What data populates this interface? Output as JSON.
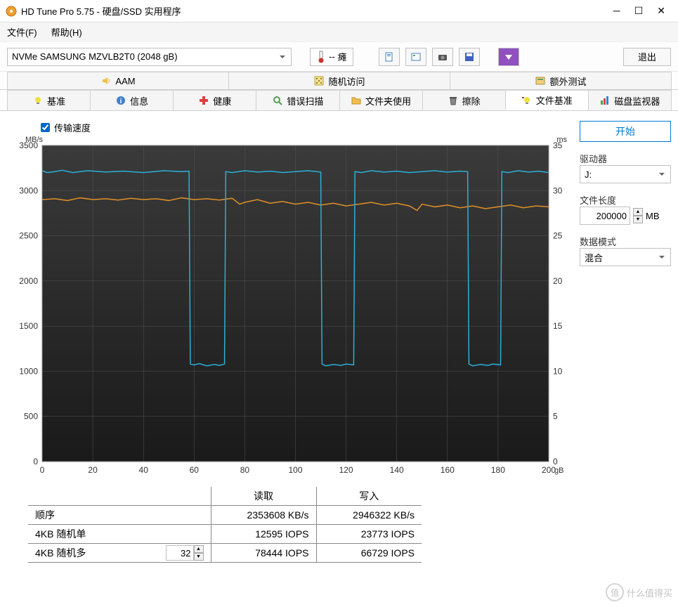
{
  "window": {
    "title": "HD Tune Pro 5.75 - 硬盘/SSD 实用程序"
  },
  "menubar": {
    "file": "文件(F)",
    "help": "帮助(H)"
  },
  "toolbar": {
    "drive": "NVMe   SAMSUNG MZVLB2T0 (2048 gB)",
    "temp_value": "--",
    "temp_unit": "瘫",
    "exit": "退出"
  },
  "tabs_row1": {
    "aam": "AAM",
    "random": "随机访问",
    "extra": "额外测试"
  },
  "tabs_row2": {
    "benchmark": "基准",
    "info": "信息",
    "health": "健康",
    "error_scan": "错误扫描",
    "folder_usage": "文件夹使用",
    "erase": "擦除",
    "file_bench": "文件基准",
    "disk_monitor": "磁盘监视器"
  },
  "checkbox": {
    "transfer_speed": "传输速度"
  },
  "chart": {
    "y_left_unit": "MB/s",
    "y_right_unit": "ms",
    "x_unit": "gB",
    "y_left_ticks": [
      0,
      500,
      1000,
      1500,
      2000,
      2500,
      3000,
      3500
    ],
    "y_right_ticks": [
      0,
      5,
      10,
      15,
      20,
      25,
      30,
      35
    ],
    "x_ticks": [
      0,
      20,
      40,
      60,
      80,
      100,
      120,
      140,
      160,
      180,
      200
    ],
    "ylim_left": [
      0,
      3500
    ],
    "ylim_right": [
      0,
      35
    ],
    "xlim": [
      0,
      200
    ],
    "background_color": "#2d2d2d",
    "grid_color": "#555555",
    "speed_color": "#2bb0d8",
    "access_color": "#e09028",
    "speed_series": [
      [
        0,
        3220
      ],
      [
        2,
        3200
      ],
      [
        5,
        3210
      ],
      [
        8,
        3225
      ],
      [
        12,
        3200
      ],
      [
        18,
        3220
      ],
      [
        25,
        3205
      ],
      [
        32,
        3215
      ],
      [
        40,
        3200
      ],
      [
        48,
        3220
      ],
      [
        55,
        3210
      ],
      [
        58,
        3215
      ],
      [
        58.5,
        1080
      ],
      [
        60,
        1070
      ],
      [
        62,
        1085
      ],
      [
        65,
        1060
      ],
      [
        68,
        1075
      ],
      [
        70,
        1065
      ],
      [
        72,
        1080
      ],
      [
        72.5,
        3210
      ],
      [
        75,
        3200
      ],
      [
        80,
        3220
      ],
      [
        85,
        3205
      ],
      [
        90,
        3215
      ],
      [
        95,
        3200
      ],
      [
        100,
        3210
      ],
      [
        105,
        3220
      ],
      [
        110,
        3205
      ],
      [
        110.5,
        1080
      ],
      [
        112,
        1060
      ],
      [
        115,
        1075
      ],
      [
        118,
        1065
      ],
      [
        120,
        1080
      ],
      [
        123,
        1070
      ],
      [
        123.5,
        3210
      ],
      [
        126,
        3200
      ],
      [
        130,
        3220
      ],
      [
        135,
        3205
      ],
      [
        140,
        3215
      ],
      [
        145,
        3200
      ],
      [
        150,
        3210
      ],
      [
        155,
        3220
      ],
      [
        160,
        3205
      ],
      [
        165,
        3215
      ],
      [
        168,
        3210
      ],
      [
        168.5,
        1080
      ],
      [
        170,
        1060
      ],
      [
        173,
        1075
      ],
      [
        176,
        1065
      ],
      [
        178,
        1080
      ],
      [
        181,
        1070
      ],
      [
        181.5,
        3210
      ],
      [
        184,
        3200
      ],
      [
        188,
        3220
      ],
      [
        192,
        3205
      ],
      [
        196,
        3215
      ],
      [
        200,
        3200
      ]
    ],
    "access_series": [
      [
        0,
        2900
      ],
      [
        5,
        2910
      ],
      [
        10,
        2890
      ],
      [
        15,
        2920
      ],
      [
        20,
        2900
      ],
      [
        25,
        2910
      ],
      [
        30,
        2895
      ],
      [
        35,
        2915
      ],
      [
        40,
        2900
      ],
      [
        45,
        2910
      ],
      [
        50,
        2890
      ],
      [
        55,
        2920
      ],
      [
        60,
        2900
      ],
      [
        65,
        2910
      ],
      [
        70,
        2895
      ],
      [
        75,
        2915
      ],
      [
        78,
        2850
      ],
      [
        80,
        2870
      ],
      [
        85,
        2900
      ],
      [
        90,
        2860
      ],
      [
        95,
        2880
      ],
      [
        100,
        2850
      ],
      [
        105,
        2870
      ],
      [
        110,
        2840
      ],
      [
        115,
        2860
      ],
      [
        120,
        2830
      ],
      [
        125,
        2850
      ],
      [
        130,
        2870
      ],
      [
        135,
        2840
      ],
      [
        140,
        2860
      ],
      [
        145,
        2830
      ],
      [
        148,
        2780
      ],
      [
        150,
        2850
      ],
      [
        155,
        2820
      ],
      [
        160,
        2840
      ],
      [
        165,
        2810
      ],
      [
        170,
        2830
      ],
      [
        175,
        2800
      ],
      [
        180,
        2820
      ],
      [
        185,
        2840
      ],
      [
        190,
        2810
      ],
      [
        195,
        2830
      ],
      [
        200,
        2820
      ]
    ]
  },
  "results": {
    "header_read": "读取",
    "header_write": "写入",
    "rows": [
      {
        "label": "顺序",
        "read": "2353608 KB/s",
        "write": "2946322 KB/s"
      },
      {
        "label": "4KB 随机单",
        "read": "12595 IOPS",
        "write": "23773 IOPS"
      },
      {
        "label": "4KB 随机多",
        "read": "78444 IOPS",
        "write": "66729 IOPS"
      }
    ],
    "queue_depth": "32"
  },
  "sidebar": {
    "start": "开始",
    "drive_label": "驱动器",
    "drive_value": "J:",
    "file_length_label": "文件长度",
    "file_length_value": "200000",
    "file_length_unit": "MB",
    "data_mode_label": "数据模式",
    "data_mode_value": "混合"
  },
  "watermark": "什么值得买"
}
